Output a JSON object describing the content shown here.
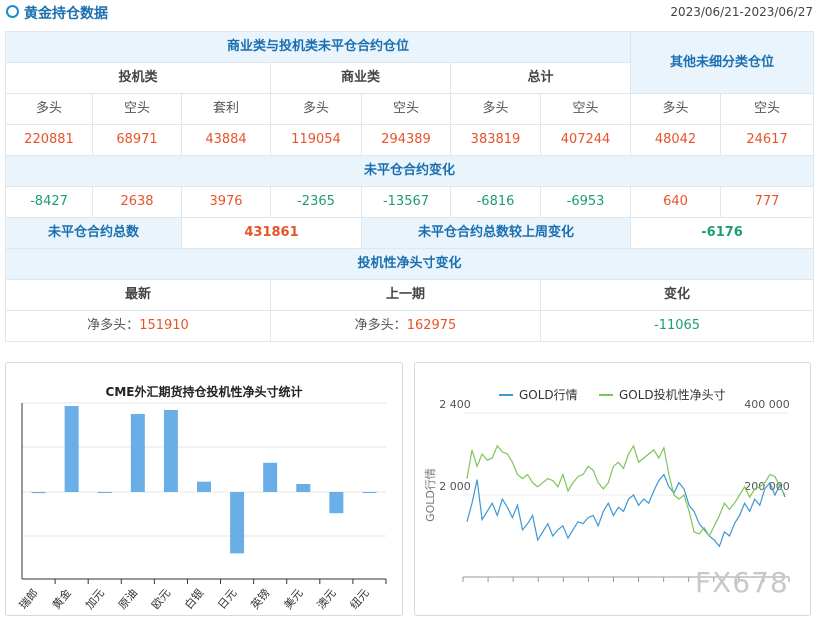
{
  "header": {
    "title": "黄金持仓数据",
    "date_range": "2023/06/21-2023/06/27"
  },
  "table": {
    "main_header": "商业类与投机类未平仓合约仓位",
    "other_header": "其他未细分类仓位",
    "group_speculative": "投机类",
    "group_commercial": "商业类",
    "group_total": "总计",
    "col_long": "多头",
    "col_short": "空头",
    "col_spread": "套利",
    "positions": {
      "spec_long": "220881",
      "spec_short": "68971",
      "spec_spread": "43884",
      "comm_long": "119054",
      "comm_short": "294389",
      "total_long": "383819",
      "total_short": "407244",
      "other_long": "48042",
      "other_short": "24617"
    },
    "change_header": "未平仓合约变化",
    "changes": {
      "spec_long": "-8427",
      "spec_short": "2638",
      "spec_spread": "3976",
      "comm_long": "-2365",
      "comm_short": "-13567",
      "total_long": "-6816",
      "total_short": "-6953",
      "other_long": "640",
      "other_short": "777"
    },
    "oi_total_label": "未平仓合约总数",
    "oi_total_value": "431861",
    "oi_change_label": "未平仓合约总数较上周变化",
    "oi_change_value": "-6176",
    "net_header": "投机性净头寸变化",
    "net_latest_label": "最新",
    "net_prev_label": "上一期",
    "net_change_label": "变化",
    "net_prefix": "净多头：",
    "net_latest_value": "151910",
    "net_prev_value": "162975",
    "net_change_value": "-11065"
  },
  "colors": {
    "accent_blue": "#1a6fb0",
    "header_bg": "#eaf4fc",
    "red": "#e8542a",
    "green": "#1d9e6e",
    "bar_blue": "#6aaee8",
    "line_gold": "#3d97d3",
    "line_spec": "#7dc55a"
  },
  "chart_data": [
    {
      "type": "bar",
      "title": "CME外汇期货持仓投机性净头寸统计",
      "categories": [
        "瑞郎",
        "黄金",
        "加元",
        "原油",
        "欧元",
        "白银",
        "日元",
        "英镑",
        "美元",
        "澳元",
        "纽元"
      ],
      "values": [
        -2,
        150,
        0,
        136,
        143,
        18,
        -107,
        51,
        14,
        -37,
        0
      ]
    },
    {
      "type": "line",
      "series": [
        {
          "name": "GOLD行情",
          "axis": "left",
          "values": [
            1870,
            1960,
            2075,
            1880,
            1920,
            1960,
            1900,
            1980,
            1940,
            1890,
            1950,
            1830,
            1860,
            1900,
            1780,
            1820,
            1860,
            1800,
            1830,
            1850,
            1790,
            1830,
            1870,
            1860,
            1890,
            1900,
            1850,
            1920,
            1960,
            1900,
            1940,
            1920,
            1980,
            2000,
            1950,
            1980,
            1960,
            2020,
            2070,
            2100,
            2040,
            2010,
            2060,
            2030,
            1950,
            1920,
            1860,
            1830,
            1800,
            1780,
            1750,
            1820,
            1800,
            1860,
            1900,
            1960,
            1920,
            1980,
            1950,
            2030,
            2060,
            2000,
            2050,
            1990
          ]
        },
        {
          "name": "GOLD投机性净头寸",
          "axis": "right",
          "values": [
            240000,
            310000,
            270000,
            300000,
            285000,
            290000,
            320000,
            305000,
            300000,
            280000,
            250000,
            240000,
            250000,
            230000,
            220000,
            230000,
            240000,
            235000,
            220000,
            250000,
            210000,
            230000,
            245000,
            250000,
            270000,
            260000,
            230000,
            215000,
            230000,
            270000,
            280000,
            265000,
            300000,
            320000,
            280000,
            290000,
            300000,
            310000,
            290000,
            315000,
            250000,
            200000,
            190000,
            200000,
            160000,
            110000,
            105000,
            120000,
            100000,
            125000,
            150000,
            180000,
            165000,
            180000,
            200000,
            220000,
            195000,
            215000,
            220000,
            230000,
            250000,
            245000,
            220000,
            200000
          ]
        }
      ],
      "legend": [
        "GOLD行情",
        "GOLD投机性净头寸"
      ],
      "ylabel_left": "GOLD行情",
      "y_left_ticks": [
        "2 400",
        "2 000"
      ],
      "y_right_ticks": [
        "400 000",
        "200 000"
      ],
      "ylim_left": [
        1600,
        2400
      ],
      "ylim_right": [
        0,
        400000
      ]
    }
  ],
  "watermark": "FX678"
}
